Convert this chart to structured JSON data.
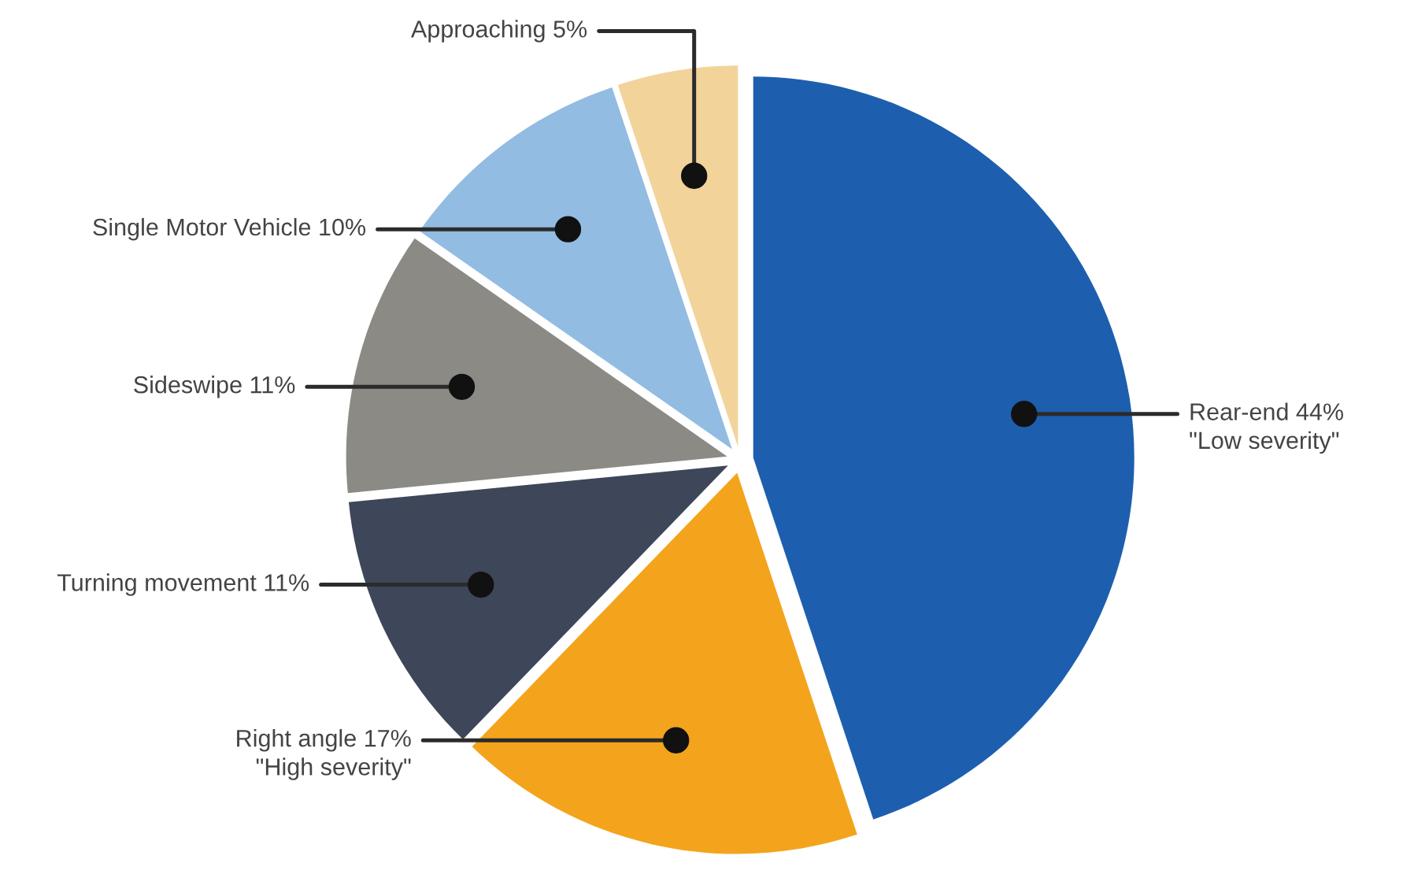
{
  "chart_data": {
    "type": "pie",
    "categories": [
      "Rear-end",
      "Right angle",
      "Turning movement",
      "Sideswipe",
      "Single Motor Vehicle",
      "Approaching"
    ],
    "values": [
      44,
      17,
      11,
      11,
      10,
      5
    ],
    "value_labels": [
      "44%",
      "17%",
      "11%",
      "11%",
      "10%",
      "5%"
    ],
    "colors": [
      "#1d5fae",
      "#f3a41c",
      "#3e4659",
      "#8b8a84",
      "#92bce2",
      "#f2d399"
    ],
    "annotations": [
      {
        "text": "\"Low severity\"",
        "x": "Rear-end"
      },
      {
        "text": "\"High severity\"",
        "x": "Right angle"
      }
    ]
  }
}
